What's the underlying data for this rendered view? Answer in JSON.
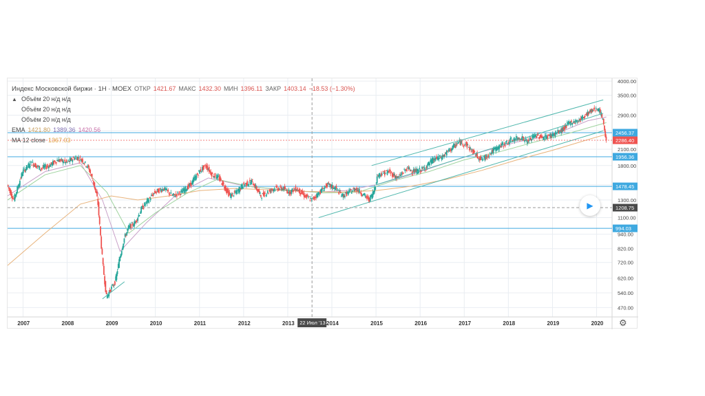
{
  "legend": {
    "title": "Индекс Московской биржи · 1Н · МОЕХ",
    "ohlc": [
      {
        "k": "ОТКР",
        "v": "1421.67"
      },
      {
        "k": "МАКС",
        "v": "1432.30"
      },
      {
        "k": "МИН",
        "v": "1396.11"
      },
      {
        "k": "ЗАКР",
        "v": "1403.14"
      },
      {
        "k": "",
        "v": "−18.53 (−1.30%)"
      }
    ],
    "volume_rows": [
      "Объём 20  н/д  н/д",
      "Объём 20  н/д  н/д",
      "Объём 20  н/д  н/д"
    ],
    "ema": {
      "label": "EMA",
      "v1": "1421.80",
      "v2": "1389.36",
      "v3": "1420.56"
    },
    "ma": {
      "label": "MA 12 close",
      "v": "1367.03"
    }
  },
  "colors": {
    "up": "#26a69a",
    "down": "#ef5350",
    "level": "#3fa9e0",
    "channel": "#4db6ac",
    "ema_fast": "#c8a0c8",
    "ema_mid": "#9ed39e",
    "ma": "#e8b27a",
    "grid": "#e9edf2"
  },
  "icons": {
    "play": "play-icon",
    "settings": "gear-icon"
  },
  "chart_data": {
    "type": "line",
    "title": "Индекс Московской биржи · 1Н · МОЕХ",
    "y_scale": "log",
    "ylim": [
      430,
      4000
    ],
    "xlim": [
      2006.65,
      2020.35
    ],
    "x_ticks": [
      "2007",
      "2008",
      "2009",
      "2010",
      "2011",
      "2012",
      "2013",
      "2014",
      "2015",
      "2016",
      "2017",
      "2018",
      "2019",
      "2020"
    ],
    "y_ticks": [
      "4000.00",
      "3500.00",
      "2900.00",
      "2500.00",
      "2100.00",
      "1800.00",
      "1500.00",
      "1300.00",
      "1100.00",
      "940.00",
      "820.00",
      "720.00",
      "620.00",
      "540.00",
      "470.00"
    ],
    "price_labels": [
      {
        "v": "2456.37",
        "type": "level"
      },
      {
        "v": "2286.40",
        "type": "last"
      },
      {
        "v": "1956.36",
        "type": "level"
      },
      {
        "v": "1478.45",
        "type": "level"
      },
      {
        "v": "1208.75",
        "type": "crosshair"
      },
      {
        "v": "994.03",
        "type": "level"
      }
    ],
    "crosshair": {
      "x_label": "22 Июл '13",
      "date": 2013.55,
      "price": 1208.75
    },
    "horizontal_levels": [
      2456.37,
      1956.36,
      1478.45,
      994.03
    ],
    "price_series": {
      "name": "MOEX",
      "x": [
        2006.65,
        2006.8,
        2007.0,
        2007.2,
        2007.4,
        2007.6,
        2007.8,
        2008.0,
        2008.2,
        2008.35,
        2008.5,
        2008.6,
        2008.7,
        2008.75,
        2008.82,
        2008.9,
        2009.0,
        2009.1,
        2009.2,
        2009.3,
        2009.4,
        2009.55,
        2009.7,
        2009.85,
        2010.0,
        2010.2,
        2010.4,
        2010.6,
        2010.8,
        2011.0,
        2011.15,
        2011.3,
        2011.45,
        2011.6,
        2011.7,
        2011.85,
        2012.0,
        2012.2,
        2012.4,
        2012.55,
        2012.7,
        2012.9,
        2013.05,
        2013.2,
        2013.4,
        2013.55,
        2013.7,
        2013.9,
        2014.1,
        2014.25,
        2014.4,
        2014.55,
        2014.7,
        2014.85,
        2014.95,
        2015.05,
        2015.3,
        2015.5,
        2015.7,
        2015.9,
        2016.1,
        2016.3,
        2016.5,
        2016.7,
        2016.9,
        2017.05,
        2017.2,
        2017.4,
        2017.5,
        2017.7,
        2017.9,
        2018.1,
        2018.3,
        2018.45,
        2018.6,
        2018.8,
        2019.0,
        2019.2,
        2019.4,
        2019.6,
        2019.8,
        2020.0,
        2020.05,
        2020.12,
        2020.18,
        2020.22
      ],
      "y": [
        1500,
        1300,
        1700,
        1850,
        1750,
        1800,
        1900,
        1850,
        1950,
        1900,
        1750,
        1550,
        1300,
        1000,
        700,
        520,
        560,
        600,
        750,
        900,
        1000,
        1050,
        1200,
        1300,
        1400,
        1450,
        1350,
        1400,
        1500,
        1700,
        1800,
        1650,
        1600,
        1450,
        1350,
        1400,
        1500,
        1550,
        1350,
        1400,
        1450,
        1450,
        1400,
        1450,
        1350,
        1300,
        1380,
        1500,
        1450,
        1350,
        1400,
        1450,
        1380,
        1300,
        1400,
        1650,
        1700,
        1600,
        1750,
        1700,
        1750,
        1900,
        1950,
        2100,
        2250,
        2200,
        2050,
        1900,
        1950,
        2100,
        2200,
        2300,
        2350,
        2250,
        2400,
        2350,
        2400,
        2500,
        2700,
        2750,
        2950,
        3100,
        3050,
        2900,
        2600,
        2286.4
      ]
    },
    "series": [
      {
        "name": "EMA",
        "x": [
          2006.65,
          2007.5,
          2008.3,
          2008.8,
          2009.2,
          2009.8,
          2010.5,
          2011.2,
          2011.9,
          2012.8,
          2013.6,
          2014.3,
          2015.0,
          2015.8,
          2016.6,
          2017.4,
          2018.2,
          2019.0,
          2019.8,
          2020.22
        ],
        "y": [
          1350,
          1700,
          1850,
          1300,
          800,
          1050,
          1380,
          1600,
          1500,
          1430,
          1400,
          1420,
          1500,
          1650,
          1850,
          2050,
          2250,
          2400,
          2750,
          2850
        ]
      },
      {
        "name": "EMA",
        "x": [
          2006.65,
          2007.5,
          2008.3,
          2008.9,
          2009.4,
          2010.0,
          2010.7,
          2011.4,
          2012.2,
          2013.0,
          2013.8,
          2014.6,
          2015.4,
          2016.2,
          2017.0,
          2017.8,
          2018.6,
          2019.4,
          2020.22
        ],
        "y": [
          1300,
          1650,
          1800,
          1400,
          950,
          1150,
          1380,
          1580,
          1470,
          1430,
          1390,
          1400,
          1560,
          1700,
          1900,
          2050,
          2250,
          2450,
          2700
        ]
      },
      {
        "name": "MA 12 close",
        "x": [
          2006.65,
          2007.5,
          2008.3,
          2009.0,
          2009.6,
          2010.3,
          2011.0,
          2011.8,
          2012.6,
          2013.4,
          2014.2,
          2015.0,
          2015.8,
          2016.6,
          2017.4,
          2018.2,
          2019.0,
          2019.8,
          2020.22
        ],
        "y": [
          700,
          950,
          1250,
          1350,
          1300,
          1350,
          1420,
          1450,
          1430,
          1410,
          1400,
          1420,
          1480,
          1580,
          1720,
          1900,
          2080,
          2300,
          2420
        ]
      }
    ],
    "trend_lines": [
      {
        "x": [
          2008.8,
          2009.3
        ],
        "y": [
          510,
          600
        ]
      },
      {
        "x": [
          2014.9,
          2020.15
        ],
        "y": [
          1800,
          3350
        ]
      },
      {
        "x": [
          2013.7,
          2020.15
        ],
        "y": [
          1100,
          2500
        ]
      },
      {
        "x": [
          2015.0,
          2020.15
        ],
        "y": [
          1500,
          2950
        ]
      }
    ]
  }
}
